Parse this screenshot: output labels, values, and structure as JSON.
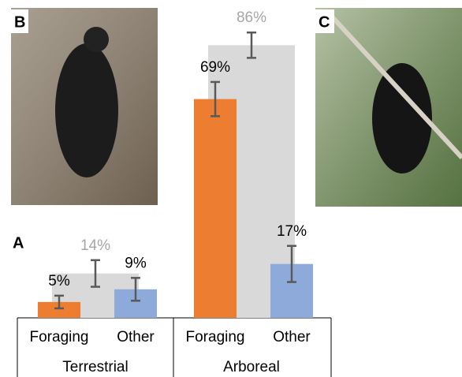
{
  "chart_data": {
    "type": "bar",
    "panel_labels": [
      "B",
      "C",
      "A"
    ],
    "categories": [
      "Terrestrial",
      "Arboreal"
    ],
    "ylim": [
      0,
      100
    ],
    "total": {
      "color": "#d9d9d9",
      "label_color": "#a6a6a6",
      "values": [
        14,
        86
      ],
      "value_labels": [
        "14%",
        "86%"
      ],
      "errors": [
        4.2,
        4
      ]
    },
    "series": [
      {
        "name": "Foraging",
        "color": "#ed7d31",
        "values": [
          5,
          69
        ],
        "value_labels": [
          "5%",
          "69%"
        ],
        "errors": [
          2,
          5.4
        ]
      },
      {
        "name": "Other",
        "color": "#8eaadb",
        "values": [
          9,
          17
        ],
        "value_labels": [
          "9%",
          "17%"
        ],
        "errors": [
          3.6,
          5.7
        ]
      }
    ]
  }
}
